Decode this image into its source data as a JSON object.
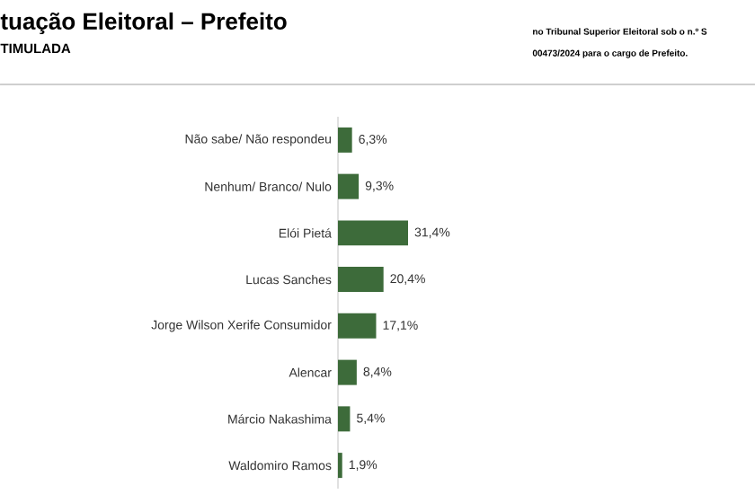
{
  "chart_data": {
    "type": "bar",
    "orientation": "horizontal",
    "title": "tuação Eleitoral – Prefeito",
    "subtitle": "TIMULADA",
    "annotations": [
      "no Tribunal Superior Eleitoral sob o n.º S",
      "00473/2024 para o cargo de Prefeito."
    ],
    "categories": [
      "Não sabe/ Não respondeu",
      "Nenhum/ Branco/ Nulo",
      "Elói Pietá",
      "Lucas Sanches",
      "Jorge Wilson Xerife Consumidor",
      "Alencar",
      "Márcio Nakashima",
      "Waldomiro Ramos"
    ],
    "values": [
      6.3,
      9.3,
      31.4,
      20.4,
      17.1,
      8.4,
      5.4,
      1.9
    ],
    "value_labels": [
      "6,3%",
      "9,3%",
      "31,4%",
      "20,4%",
      "17,1%",
      "8,4%",
      "5,4%",
      "1,9%"
    ],
    "color": "#3d6b3a"
  }
}
